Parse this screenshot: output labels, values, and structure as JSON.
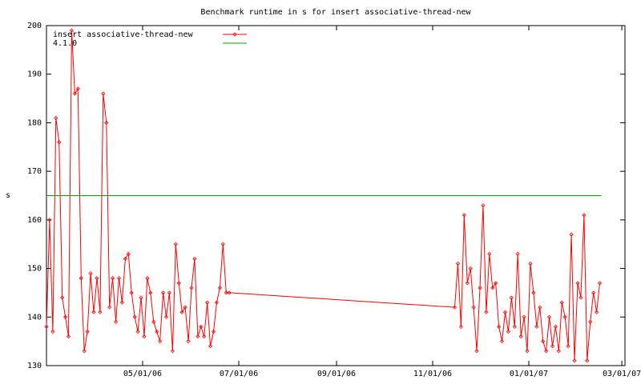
{
  "chart_data": {
    "type": "line",
    "title": "Benchmark runtime in s for insert associative-thread-new",
    "y_label": "s",
    "xlim": [
      "2006-03-01",
      "2007-03-03"
    ],
    "xticks": [
      {
        "value": "2006-05-01",
        "label": "05/01/06"
      },
      {
        "value": "2006-07-01",
        "label": "07/01/06"
      },
      {
        "value": "2006-09-01",
        "label": "09/01/06"
      },
      {
        "value": "2006-11-01",
        "label": "11/01/06"
      },
      {
        "value": "2007-01-01",
        "label": "01/01/07"
      },
      {
        "value": "2007-03-01",
        "label": "03/01/07"
      }
    ],
    "ylim": [
      130,
      200
    ],
    "yticks": [
      130,
      140,
      150,
      160,
      170,
      180,
      190,
      200
    ],
    "legend": "top-left",
    "series": [
      {
        "name": "insert associative-thread-new",
        "color": "#ff0000",
        "markers": true,
        "x": [
          "2006-03-01",
          "2006-03-03",
          "2006-03-05",
          "2006-03-07",
          "2006-03-09",
          "2006-03-11",
          "2006-03-13",
          "2006-03-15",
          "2006-03-17",
          "2006-03-19",
          "2006-03-21",
          "2006-03-23",
          "2006-03-25",
          "2006-03-27",
          "2006-03-29",
          "2006-03-31",
          "2006-04-02",
          "2006-04-04",
          "2006-04-06",
          "2006-04-08",
          "2006-04-10",
          "2006-04-12",
          "2006-04-14",
          "2006-04-16",
          "2006-04-18",
          "2006-04-20",
          "2006-04-22",
          "2006-04-24",
          "2006-04-26",
          "2006-04-28",
          "2006-04-30",
          "2006-05-02",
          "2006-05-04",
          "2006-05-06",
          "2006-05-08",
          "2006-05-10",
          "2006-05-12",
          "2006-05-14",
          "2006-05-16",
          "2006-05-18",
          "2006-05-20",
          "2006-05-22",
          "2006-05-24",
          "2006-05-26",
          "2006-05-28",
          "2006-05-30",
          "2006-06-01",
          "2006-06-03",
          "2006-06-05",
          "2006-06-07",
          "2006-06-09",
          "2006-06-11",
          "2006-06-13",
          "2006-06-15",
          "2006-06-17",
          "2006-06-19",
          "2006-06-21",
          "2006-06-23",
          "2006-06-25",
          "2006-11-15",
          "2006-11-17",
          "2006-11-19",
          "2006-11-21",
          "2006-11-23",
          "2006-11-25",
          "2006-11-27",
          "2006-11-29",
          "2006-12-01",
          "2006-12-03",
          "2006-12-05",
          "2006-12-07",
          "2006-12-09",
          "2006-12-11",
          "2006-12-13",
          "2006-12-15",
          "2006-12-17",
          "2006-12-19",
          "2006-12-21",
          "2006-12-23",
          "2006-12-25",
          "2006-12-27",
          "2006-12-29",
          "2006-12-31",
          "2007-01-02",
          "2007-01-04",
          "2007-01-06",
          "2007-01-08",
          "2007-01-10",
          "2007-01-12",
          "2007-01-14",
          "2007-01-16",
          "2007-01-18",
          "2007-01-20",
          "2007-01-22",
          "2007-01-24",
          "2007-01-26",
          "2007-01-28",
          "2007-01-30",
          "2007-02-01",
          "2007-02-03",
          "2007-02-05",
          "2007-02-07",
          "2007-02-09",
          "2007-02-11",
          "2007-02-13",
          "2007-02-15"
        ],
        "values": [
          138,
          160,
          137,
          181,
          176,
          144,
          140,
          136,
          199,
          186,
          187,
          148,
          133,
          137,
          149,
          141,
          148,
          141,
          186,
          180,
          142,
          148,
          139,
          148,
          143,
          152,
          153,
          145,
          140,
          137,
          144,
          136,
          148,
          145,
          139,
          137,
          135,
          145,
          140,
          145,
          133,
          155,
          147,
          141,
          142,
          135,
          146,
          152,
          136,
          138,
          136,
          143,
          134,
          137,
          143,
          146,
          155,
          145,
          145,
          142,
          151,
          138,
          161,
          147,
          150,
          142,
          133,
          146,
          163,
          141,
          153,
          146,
          147,
          138,
          135,
          141,
          137,
          144,
          138,
          153,
          136,
          140,
          133,
          151,
          145,
          138,
          142,
          135,
          133,
          140,
          134,
          138,
          133,
          143,
          140,
          134,
          157,
          131,
          147,
          144,
          161,
          131,
          139,
          145,
          141,
          147
        ]
      },
      {
        "name": "4.1.0",
        "color": "#00a000",
        "markers": false,
        "x": [
          "2006-03-01",
          "2007-02-16"
        ],
        "values": [
          165,
          165
        ]
      }
    ]
  }
}
